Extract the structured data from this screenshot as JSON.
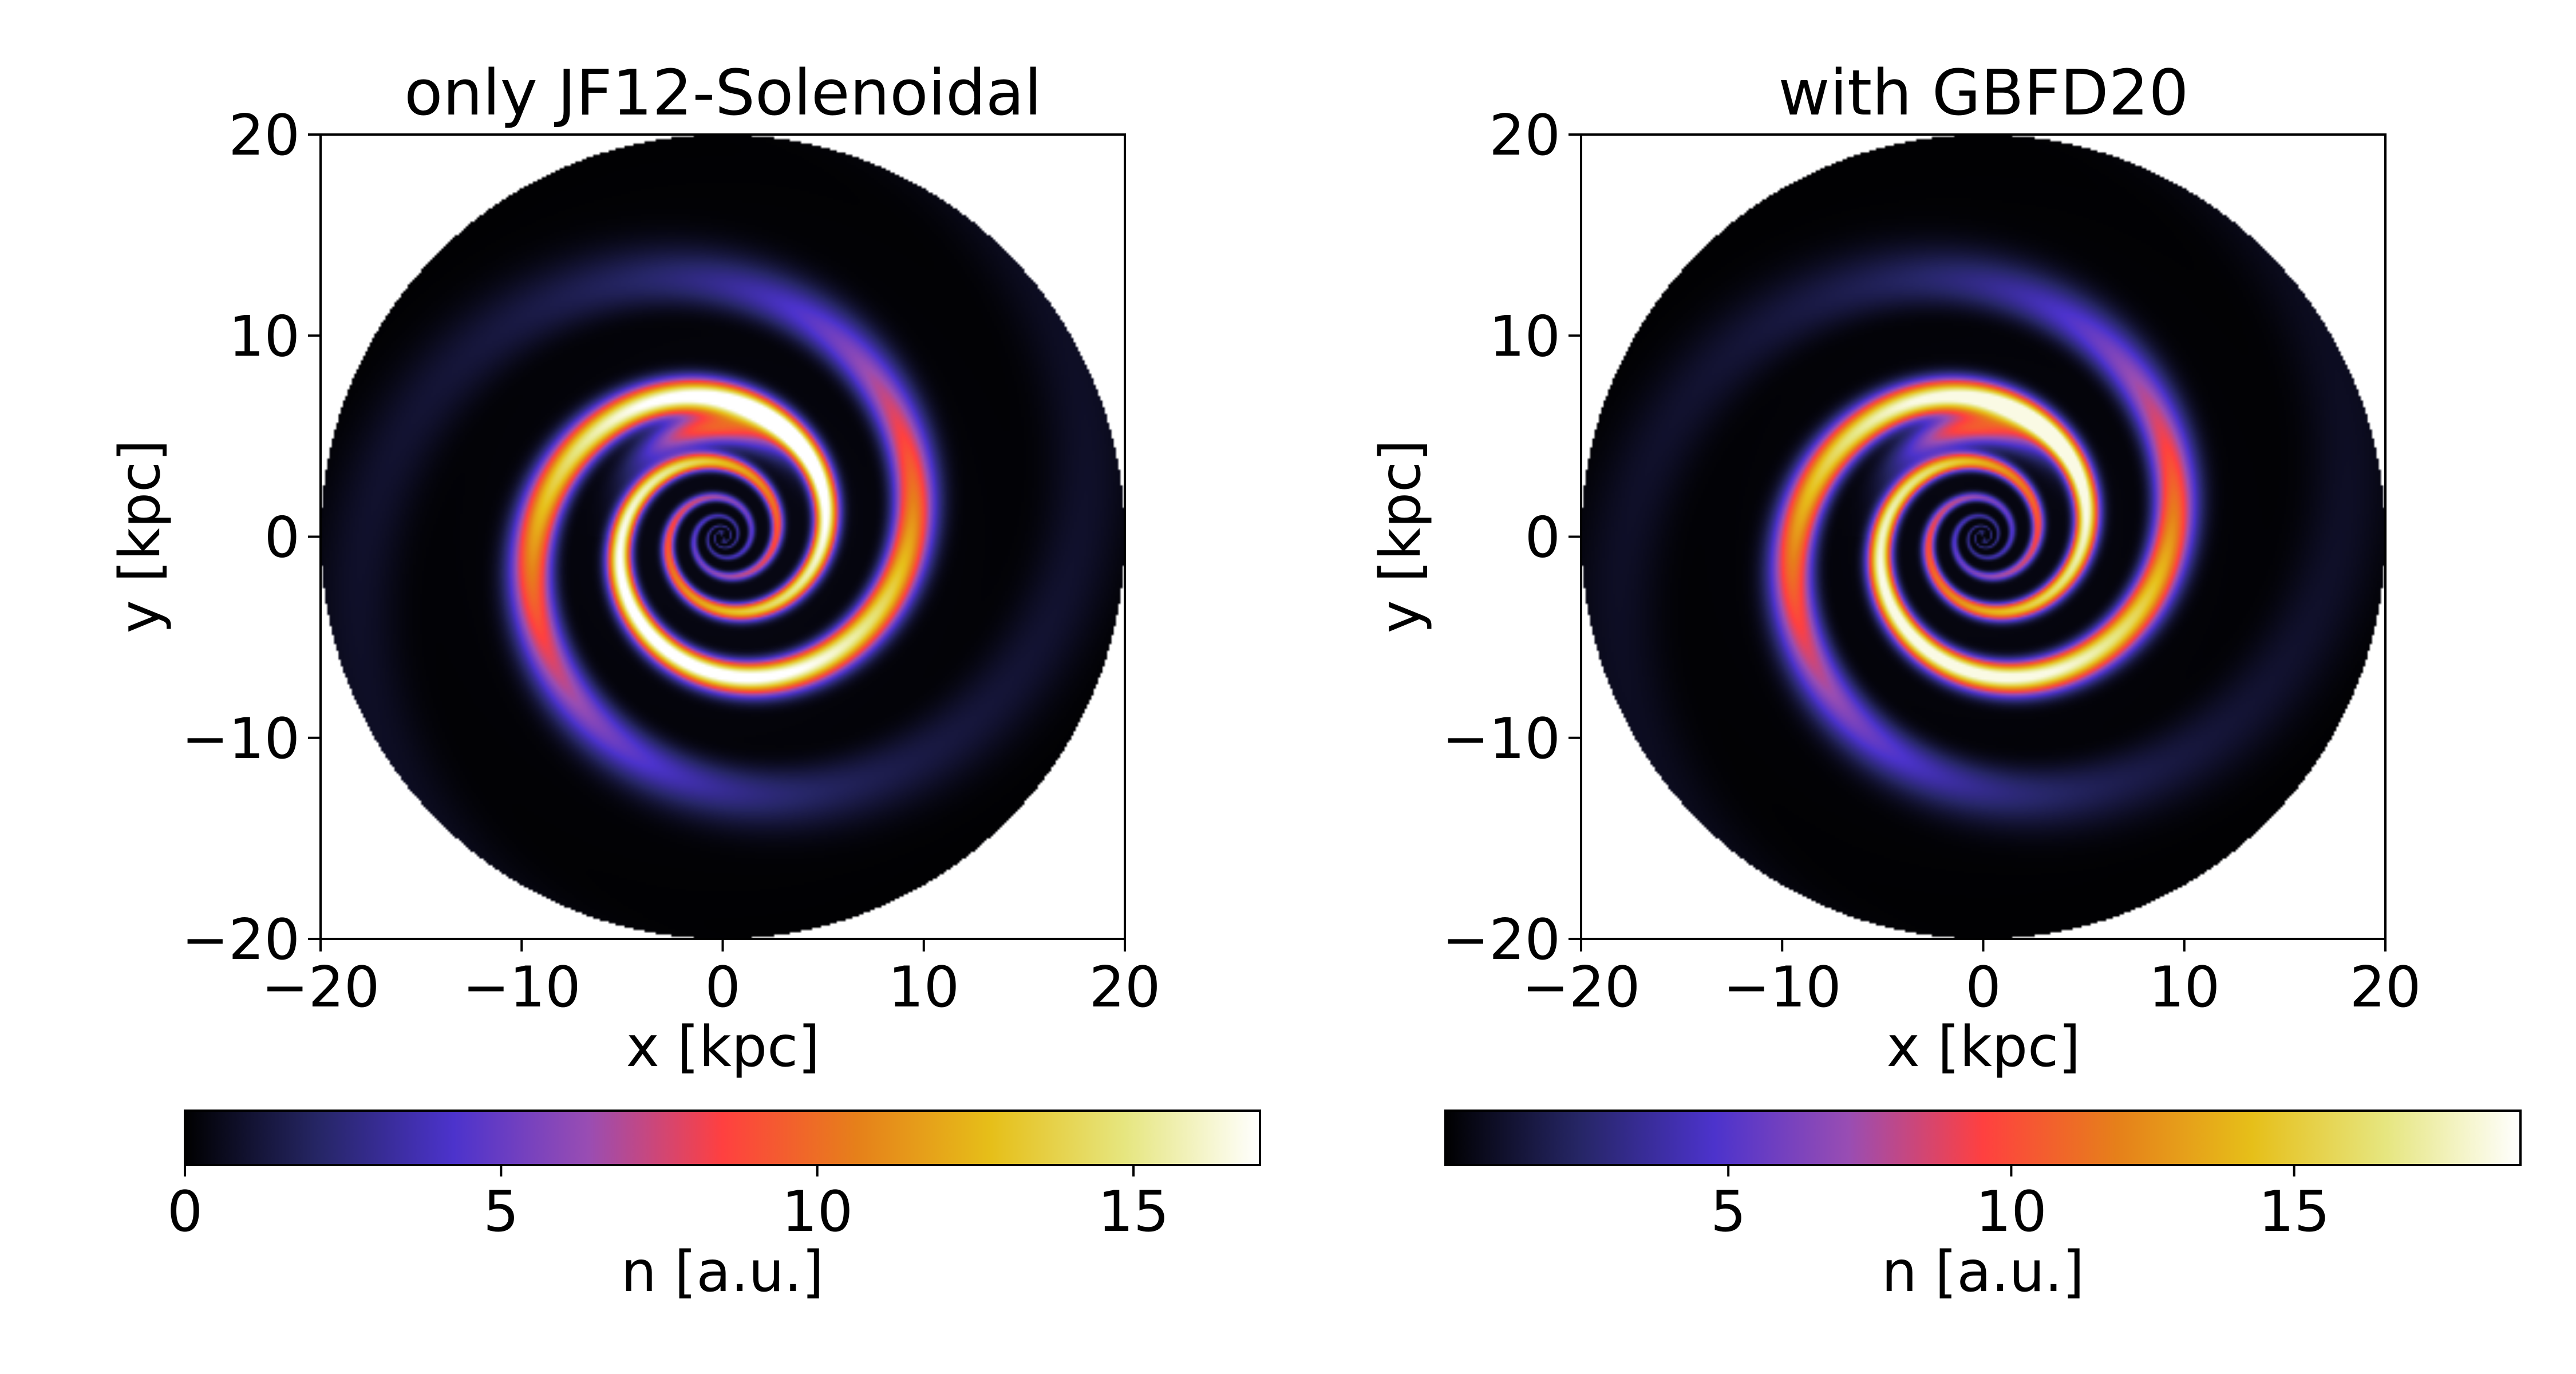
{
  "chart_data": [
    {
      "type": "heatmap",
      "title": "only JF12-Solenoidal",
      "xlabel": "x [kpc]",
      "ylabel": "y [kpc]",
      "xlim": [
        -20,
        20
      ],
      "ylim": [
        -20,
        20
      ],
      "x_ticks": [
        -20,
        -10,
        0,
        10,
        20
      ],
      "y_ticks": [
        -20,
        -10,
        0,
        10,
        20
      ],
      "x_tick_labels": [
        "−20",
        "−10",
        "0",
        "10",
        "20"
      ],
      "y_tick_labels": [
        "−20",
        "−10",
        "0",
        "10",
        "20"
      ],
      "disk_radius_kpc": 20,
      "colorbar": {
        "label": "n [a.u.]",
        "range": [
          0,
          17
        ],
        "ticks": [
          0,
          5,
          10,
          15
        ],
        "tick_labels": [
          "0",
          "5",
          "10",
          "15"
        ],
        "colormap": "CMRmap"
      },
      "peak_value": 17,
      "spiral": {
        "arms": 2,
        "pitch_angle_deg": 11.5,
        "inner_bright_arc": true
      }
    },
    {
      "type": "heatmap",
      "title": "with GBFD20",
      "xlabel": "x [kpc]",
      "ylabel": "y [kpc]",
      "xlim": [
        -20,
        20
      ],
      "ylim": [
        -20,
        20
      ],
      "x_ticks": [
        -20,
        -10,
        0,
        10,
        20
      ],
      "y_ticks": [
        -20,
        -10,
        0,
        10,
        20
      ],
      "x_tick_labels": [
        "−20",
        "−10",
        "0",
        "10",
        "20"
      ],
      "y_tick_labels": [
        "−20",
        "−10",
        "0",
        "10",
        "20"
      ],
      "disk_radius_kpc": 20,
      "colorbar": {
        "label": "n [a.u.]",
        "range": [
          0,
          19
        ],
        "ticks": [
          5,
          10,
          15
        ],
        "tick_labels": [
          "5",
          "10",
          "15"
        ],
        "colormap": "CMRmap"
      },
      "peak_value": 18.5,
      "spiral": {
        "arms": 2,
        "pitch_angle_deg": 11.5,
        "inner_bright_arc": true
      }
    }
  ],
  "colormap_stops": [
    [
      "#000000",
      0.0
    ],
    [
      "#262666",
      0.125
    ],
    [
      "#4c33cc",
      0.25
    ],
    [
      "#994db3",
      0.375
    ],
    [
      "#ff4040",
      0.5
    ],
    [
      "#e6801a",
      0.625
    ],
    [
      "#e6bf19",
      0.75
    ],
    [
      "#e6e680",
      0.875
    ],
    [
      "#ffffff",
      1.0
    ]
  ]
}
